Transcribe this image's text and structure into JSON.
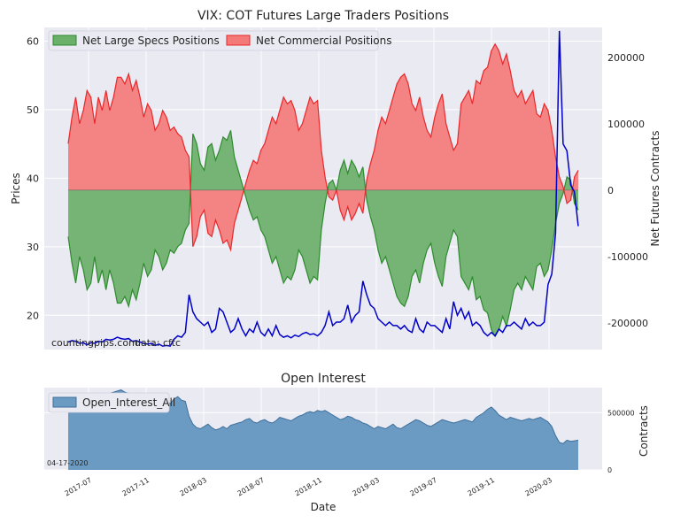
{
  "chart_data": [
    {
      "type": "area",
      "title": "VIX: COT Futures Large Traders Positions",
      "ylabel": "Prices",
      "ylabel_right": "Net Futures Contracts",
      "ylim": [
        15,
        62
      ],
      "ylim_right": [
        -240000,
        245000
      ],
      "yticks": [
        "20",
        "30",
        "40",
        "50",
        "60"
      ],
      "yticks_right": [
        "-200000",
        "-100000",
        "0",
        "100000",
        "200000"
      ],
      "legend": {
        "position": "top-left",
        "specs_label": "Net Large Specs Positions",
        "comm_label": "Net Commercial Positions"
      },
      "watermark_site": "countingpips.com",
      "watermark_data": "data: cftc",
      "colors": {
        "specs": "#2e8b2e",
        "specs_fill": "#6aaf6a",
        "comm": "#e8282b",
        "comm_fill": "#f47a7a",
        "price": "#0000c8",
        "grid_bg": "#eaeaf2"
      },
      "net_positions": [
        -70000,
        -110000,
        -140000,
        -100000,
        -120000,
        -150000,
        -140000,
        -100000,
        -140000,
        -120000,
        -150000,
        -120000,
        -140000,
        -170000,
        -170000,
        -160000,
        -175000,
        -150000,
        -165000,
        -140000,
        -110000,
        -130000,
        -120000,
        -90000,
        -100000,
        -120000,
        -110000,
        -90000,
        -95000,
        -85000,
        -80000,
        -60000,
        -50000,
        85000,
        70000,
        40000,
        30000,
        65000,
        70000,
        45000,
        60000,
        80000,
        75000,
        90000,
        50000,
        30000,
        10000,
        -10000,
        -30000,
        -45000,
        -40000,
        -60000,
        -70000,
        -90000,
        -110000,
        -100000,
        -120000,
        -140000,
        -130000,
        -135000,
        -120000,
        -90000,
        -100000,
        -120000,
        -140000,
        -130000,
        -135000,
        -60000,
        -20000,
        10000,
        15000,
        0,
        30000,
        45000,
        25000,
        45000,
        35000,
        20000,
        35000,
        -15000,
        -40000,
        -60000,
        -90000,
        -110000,
        -100000,
        -120000,
        -140000,
        -160000,
        -170000,
        -175000,
        -160000,
        -130000,
        -120000,
        -140000,
        -110000,
        -90000,
        -80000,
        -110000,
        -130000,
        -145000,
        -100000,
        -80000,
        -60000,
        -70000,
        -130000,
        -140000,
        -150000,
        -130000,
        -165000,
        -160000,
        -180000,
        -185000,
        -210000,
        -220000,
        -210000,
        -190000,
        -205000,
        -180000,
        -150000,
        -140000,
        -150000,
        -130000,
        -140000,
        -150000,
        -115000,
        -110000,
        -130000,
        -120000,
        -90000,
        -50000,
        -20000,
        -5000,
        20000,
        15000,
        -20000,
        -30000
      ],
      "vix_prices": [
        16.1,
        16.3,
        16.2,
        15.9,
        16.0,
        15.7,
        16.0,
        15.9,
        16.2,
        16.1,
        16.5,
        16.4,
        16.5,
        16.8,
        16.6,
        16.5,
        16.6,
        16.2,
        16.3,
        16.1,
        15.9,
        15.8,
        15.9,
        15.6,
        15.8,
        15.5,
        15.6,
        15.5,
        16.5,
        17.0,
        16.8,
        17.5,
        23.0,
        20.5,
        19.5,
        19.0,
        18.5,
        19.0,
        17.5,
        18.0,
        21.0,
        20.5,
        19.0,
        17.5,
        18.0,
        19.5,
        18.0,
        17.0,
        18.0,
        17.5,
        19.0,
        17.5,
        17.0,
        18.0,
        17.0,
        18.5,
        17.2,
        16.8,
        17.0,
        16.7,
        17.1,
        16.9,
        17.3,
        17.5,
        17.2,
        17.3,
        17.0,
        17.5,
        18.5,
        20.5,
        18.5,
        19.0,
        19.0,
        19.5,
        21.5,
        19.0,
        20.0,
        20.5,
        25.0,
        23.0,
        21.5,
        21.0,
        19.5,
        19.0,
        18.5,
        19.0,
        18.5,
        18.5,
        18.0,
        18.5,
        17.8,
        17.5,
        19.5,
        18.0,
        17.5,
        19.0,
        18.5,
        18.5,
        18.0,
        17.5,
        19.5,
        18.0,
        22.0,
        20.0,
        21.0,
        19.5,
        20.5,
        18.5,
        19.0,
        18.5,
        17.5,
        17.0,
        17.5,
        17.0,
        18.0,
        17.5,
        18.5,
        18.5,
        19.0,
        18.5,
        18.0,
        19.5,
        18.5,
        19.0,
        18.5,
        18.5,
        19.0,
        24.5,
        26.0,
        32.0,
        61.5,
        45.0,
        44.0,
        39.0,
        38.0,
        33.0
      ]
    },
    {
      "type": "area",
      "title": "Open Interest",
      "ylabel": "Contracts",
      "ylim": [
        0,
        720000
      ],
      "yticks_right": [
        "0",
        "500000"
      ],
      "legend": {
        "position": "top-left",
        "label": "Open_Interest_All"
      },
      "date_label": "04-17-2020",
      "xlabel": "Date",
      "xticks": [
        "2017-07",
        "2017-11",
        "2018-03",
        "2018-07",
        "2018-11",
        "2019-03",
        "2019-07",
        "2019-11",
        "2020-03"
      ],
      "colors": {
        "fill": "#6b9bc3",
        "line": "#3d6f9c"
      },
      "open_interest": [
        600000,
        610000,
        620000,
        630000,
        650000,
        640000,
        630000,
        620000,
        640000,
        650000,
        660000,
        670000,
        680000,
        690000,
        700000,
        680000,
        670000,
        660000,
        650000,
        640000,
        630000,
        620000,
        640000,
        630000,
        620000,
        610000,
        600000,
        580000,
        620000,
        640000,
        610000,
        600000,
        470000,
        400000,
        370000,
        360000,
        380000,
        400000,
        370000,
        350000,
        360000,
        380000,
        360000,
        390000,
        400000,
        410000,
        420000,
        440000,
        450000,
        420000,
        410000,
        430000,
        440000,
        420000,
        410000,
        430000,
        460000,
        450000,
        440000,
        430000,
        450000,
        470000,
        480000,
        500000,
        510000,
        500000,
        520000,
        510000,
        520000,
        500000,
        480000,
        460000,
        440000,
        450000,
        470000,
        460000,
        440000,
        430000,
        410000,
        400000,
        380000,
        360000,
        380000,
        370000,
        360000,
        380000,
        400000,
        370000,
        360000,
        380000,
        400000,
        420000,
        440000,
        430000,
        410000,
        390000,
        380000,
        400000,
        420000,
        440000,
        430000,
        420000,
        410000,
        420000,
        430000,
        440000,
        430000,
        420000,
        460000,
        480000,
        500000,
        530000,
        550000,
        520000,
        480000,
        460000,
        440000,
        460000,
        450000,
        440000,
        430000,
        440000,
        450000,
        440000,
        450000,
        460000,
        440000,
        420000,
        380000,
        300000,
        240000,
        230000,
        260000,
        250000,
        255000,
        260000
      ]
    }
  ]
}
